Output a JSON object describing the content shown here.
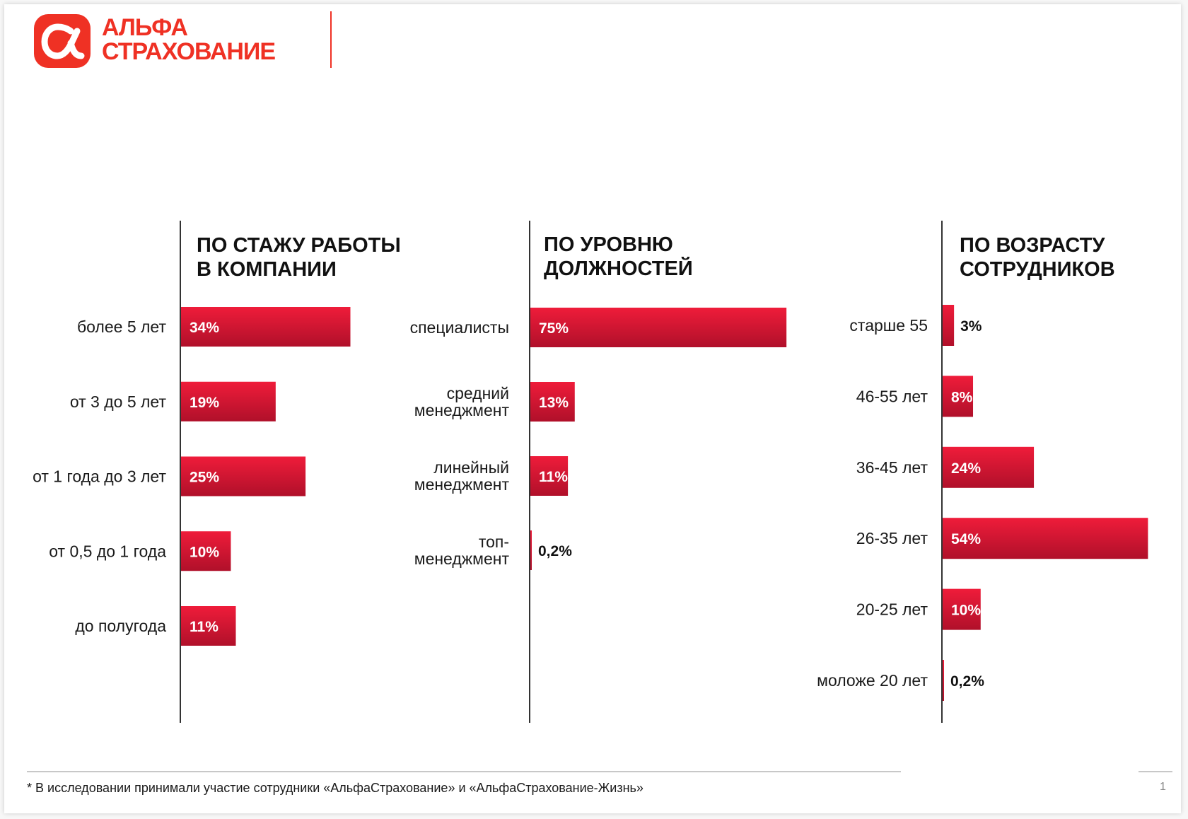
{
  "header": {
    "logo_line1": "АЛЬФА",
    "logo_line2": "СТРАХОВАНИЕ",
    "logo_symbol": "alfa-alpha-logo-icon",
    "brand_color": "#ef3124"
  },
  "colors": {
    "bar_top": "#ef1c3a",
    "bar_bottom": "#b0102a",
    "axis": "#333333",
    "label_text": "#1a1a1a",
    "value_inside": "#ffffff",
    "value_outside": "#111111"
  },
  "chart_data": [
    {
      "type": "bar",
      "orientation": "horizontal",
      "title": "ПО СТАЖУ РАБОТЫ\nВ КОМПАНИИ",
      "categories": [
        "более 5 лет",
        "от 3 до 5 лет",
        "от 1 года до 3 лет",
        "от 0,5 до 1 года",
        "до полугода"
      ],
      "values": [
        34,
        19,
        25,
        10,
        11
      ],
      "value_labels": [
        "34%",
        "19%",
        "25%",
        "10%",
        "11%"
      ],
      "unit": "%",
      "xlim": [
        0,
        100
      ],
      "grid": false,
      "legend": "none"
    },
    {
      "type": "bar",
      "orientation": "horizontal",
      "title": "ПО УРОВНЮ\nДОЛЖНОСТЕЙ",
      "categories": [
        "специалисты",
        "средний\nменеджмент",
        "линейный\nменеджмент",
        "топ-\nменеджмент"
      ],
      "values": [
        75,
        13,
        11,
        0.2
      ],
      "value_labels": [
        "75%",
        "13%",
        "11%",
        "0,2%"
      ],
      "unit": "%",
      "xlim": [
        0,
        100
      ],
      "grid": false,
      "legend": "none"
    },
    {
      "type": "bar",
      "orientation": "horizontal",
      "title": "ПО ВОЗРАСТУ\nСОТРУДНИКОВ",
      "categories": [
        "старше 55",
        "46-55 лет",
        "36-45 лет",
        "26-35 лет",
        "20-25 лет",
        "моложе 20 лет"
      ],
      "values": [
        3,
        8,
        24,
        54,
        10,
        0.2
      ],
      "value_labels": [
        "3%",
        "8%",
        "24%",
        "54%",
        "10%",
        "0,2%"
      ],
      "unit": "%",
      "xlim": [
        0,
        100
      ],
      "grid": false,
      "legend": "none"
    }
  ],
  "footer": {
    "note": "* В исследовании принимали участие сотрудники «АльфаСтрахование» и «АльфаСтрахование-Жизнь»",
    "page_number": "1"
  }
}
